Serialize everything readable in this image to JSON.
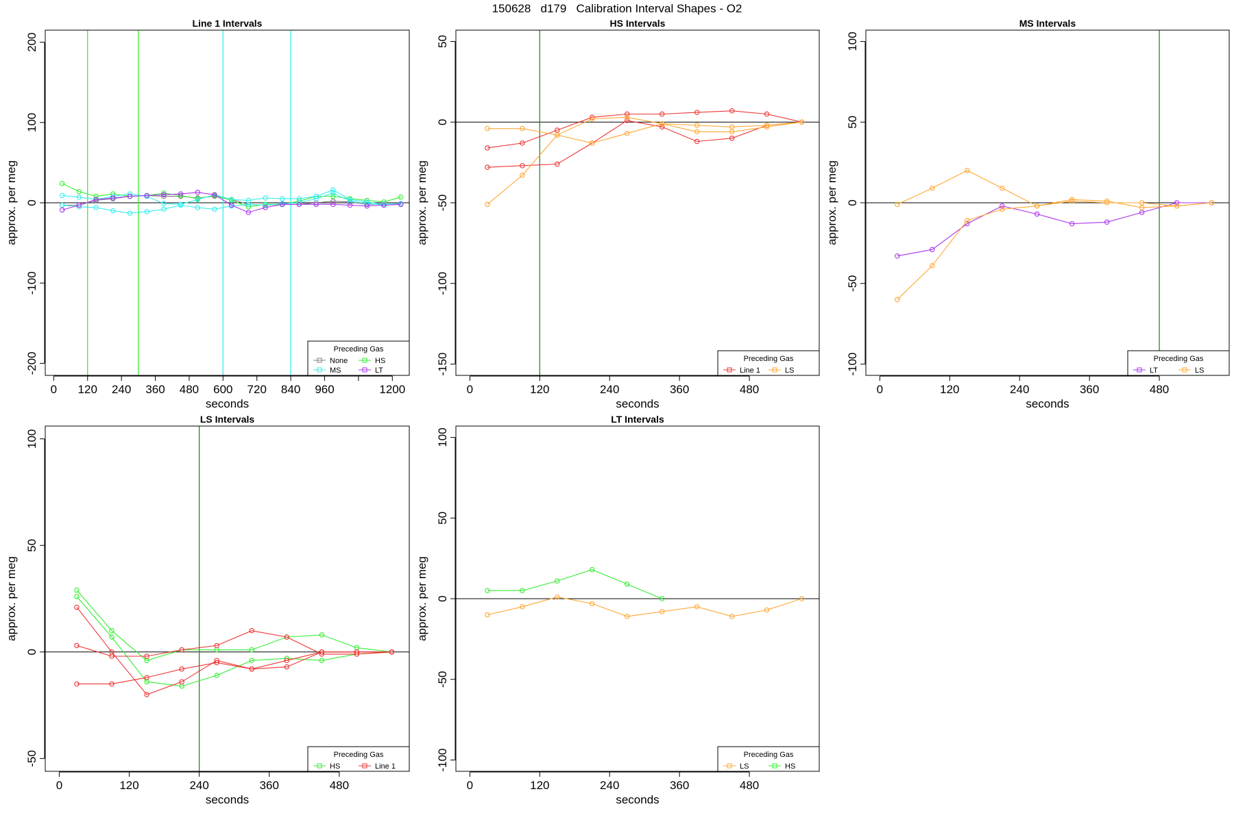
{
  "figure_title": "150628   d179   Calibration Interval Shapes - O2",
  "colors": {
    "None": "#808080",
    "HS": "#33ee33",
    "MS": "#33eeee",
    "LT": "#aa33ee",
    "Line 1": "#ee3333",
    "LS": "#ffa733",
    "vline_green": "#228b22",
    "vline_light_green": "#33ee33",
    "vline_cyan": "#33eeee",
    "zero_line": "#000000"
  },
  "chart_data": [
    {
      "type": "line",
      "title": "Line 1 Intervals",
      "xlabel": "seconds",
      "ylabel": "approx. per meg",
      "xlim": [
        -30,
        1260
      ],
      "ylim": [
        -215,
        215
      ],
      "xticks": [
        0,
        120,
        240,
        360,
        480,
        600,
        720,
        840,
        960,
        1080,
        1200
      ],
      "xtick_labels": [
        "0",
        "120",
        "240",
        "360",
        "480",
        "600",
        "720",
        "840",
        "960",
        "",
        "1200"
      ],
      "yticks": [
        -200,
        -100,
        0,
        100,
        200
      ],
      "vlines": [
        {
          "x": 120,
          "color": "vline_light_green"
        },
        {
          "x": 300,
          "color": "vline_light_green"
        },
        {
          "x": 600,
          "color": "vline_cyan"
        },
        {
          "x": 840,
          "color": "vline_cyan"
        }
      ],
      "legend": {
        "title": "Preceding Gas",
        "entries": [
          "None",
          "HS",
          "MS",
          "LT"
        ],
        "position": "bottom-right"
      },
      "series": [
        {
          "name": "None",
          "x": [
            30,
            90,
            150,
            210,
            270,
            330,
            390,
            450,
            510,
            570,
            630,
            690,
            750,
            810,
            870,
            930,
            990,
            1050,
            1110,
            1170,
            1230
          ],
          "values": [
            -3,
            -3,
            3,
            5,
            8,
            9,
            8,
            8,
            6,
            8,
            4,
            -2,
            -3,
            -2,
            -2,
            0,
            2,
            1,
            -2,
            -2,
            -2
          ]
        },
        {
          "name": "HS",
          "x": [
            30,
            90,
            150,
            210,
            270,
            330,
            390,
            450,
            510,
            570,
            630,
            690,
            750,
            810,
            870,
            930,
            990,
            1050,
            1110,
            1170,
            1230
          ],
          "values": [
            24,
            14,
            8,
            11,
            8,
            9,
            12,
            9,
            5,
            9,
            3,
            -5,
            -2,
            -2,
            2,
            8,
            8,
            5,
            3,
            1,
            7
          ]
        },
        {
          "name": "MS",
          "x": [
            30,
            90,
            150,
            210,
            270,
            330,
            390,
            450,
            510,
            570,
            630,
            690,
            750,
            810,
            870,
            930,
            990,
            1050,
            1110,
            1170,
            1230
          ],
          "values": [
            9,
            7,
            4,
            8,
            11,
            8,
            -1,
            -2,
            4,
            10,
            4,
            3,
            6,
            5,
            5,
            8,
            16,
            4,
            1,
            -2,
            -1
          ]
        },
        {
          "name": "MS",
          "x": [
            30,
            90,
            150,
            210,
            270,
            330,
            390,
            450,
            510,
            570,
            630,
            690,
            750,
            810,
            870,
            930,
            990,
            1050,
            1110,
            1170,
            1230
          ],
          "values": [
            -3,
            -5,
            -6,
            -10,
            -13,
            -11,
            -8,
            -3,
            -6,
            -8,
            -4,
            -2,
            -3,
            -1,
            0,
            5,
            12,
            2,
            -1,
            -3,
            -2
          ]
        },
        {
          "name": "LT",
          "x": [
            30,
            90,
            150,
            210,
            270,
            330,
            390,
            450,
            510,
            570,
            630,
            690,
            750,
            810,
            870,
            930,
            990,
            1050,
            1110,
            1170,
            1230
          ],
          "values": [
            -9,
            -3,
            4,
            6,
            8,
            9,
            10,
            11,
            13,
            10,
            -3,
            -12,
            -6,
            -2,
            -2,
            -2,
            -2,
            -3,
            -4,
            -3,
            -2
          ]
        }
      ]
    },
    {
      "type": "line",
      "title": "HS Intervals",
      "xlabel": "seconds",
      "ylabel": "approx. per meg",
      "xlim": [
        -24,
        600
      ],
      "ylim": [
        -157,
        57
      ],
      "xticks": [
        0,
        120,
        240,
        360,
        480
      ],
      "xtick_labels": [
        "0",
        "120",
        "240",
        "360",
        "480"
      ],
      "yticks": [
        -150,
        -100,
        -50,
        0,
        50
      ],
      "vlines": [
        {
          "x": 120,
          "color": "vline_green"
        }
      ],
      "legend": {
        "title": "Preceding Gas",
        "entries": [
          "Line 1",
          "LS"
        ],
        "position": "bottom-right"
      },
      "series": [
        {
          "name": "Line 1",
          "x": [
            30,
            90,
            150,
            210,
            270,
            330,
            390,
            450,
            510,
            570
          ],
          "values": [
            -16,
            -13,
            -5,
            3,
            5,
            5,
            6,
            7,
            5,
            0
          ]
        },
        {
          "name": "Line 1",
          "x": [
            30,
            90,
            150,
            210,
            270,
            330,
            390,
            450,
            510,
            570
          ],
          "values": [
            -28,
            -27,
            -26,
            -13,
            1,
            -3,
            -12,
            -10,
            -2,
            0
          ]
        },
        {
          "name": "LS",
          "x": [
            30,
            90,
            150,
            210,
            270,
            330,
            390,
            450,
            510,
            570
          ],
          "values": [
            -4,
            -4,
            -8,
            2,
            3,
            -1,
            -6,
            -6,
            -3,
            0
          ]
        },
        {
          "name": "LS",
          "x": [
            30,
            90,
            150,
            210,
            270,
            330,
            390,
            450,
            510,
            570
          ],
          "values": [
            -51,
            -33,
            -8,
            -13,
            -7,
            -1,
            -2,
            -3,
            -2,
            0
          ]
        }
      ]
    },
    {
      "type": "line",
      "title": "MS Intervals",
      "xlabel": "seconds",
      "ylabel": "approx. per meg",
      "xlim": [
        -24,
        600
      ],
      "ylim": [
        -107,
        107
      ],
      "xticks": [
        0,
        120,
        240,
        360,
        480
      ],
      "xtick_labels": [
        "0",
        "120",
        "240",
        "360",
        "480"
      ],
      "yticks": [
        -100,
        -50,
        0,
        50,
        100
      ],
      "vlines": [
        {
          "x": 480,
          "color": "vline_green"
        }
      ],
      "legend": {
        "title": "Preceding Gas",
        "entries": [
          "LT",
          "LS"
        ],
        "position": "bottom-right"
      },
      "series": [
        {
          "name": "LT",
          "x": [
            30,
            90,
            150,
            210,
            270,
            330,
            390,
            450,
            510,
            570
          ],
          "values": [
            -33,
            -29,
            -13,
            -2,
            -7,
            -13,
            -12,
            -6,
            0,
            0
          ]
        },
        {
          "name": "LS",
          "x": [
            30,
            90,
            150,
            210,
            270,
            330,
            390,
            450,
            510,
            570
          ],
          "values": [
            -1,
            9,
            20,
            9,
            -2,
            1,
            0,
            0,
            -2,
            0
          ]
        },
        {
          "name": "LS",
          "x": [
            30,
            90,
            150,
            210,
            270,
            330,
            390,
            450,
            510,
            570
          ],
          "values": [
            -60,
            -39,
            -11,
            -4,
            -2,
            2,
            1,
            -3,
            -2,
            0
          ]
        }
      ]
    },
    {
      "type": "line",
      "title": "LS Intervals",
      "xlabel": "seconds",
      "ylabel": "approx. per meg",
      "xlim": [
        -24,
        600
      ],
      "ylim": [
        -56,
        106
      ],
      "xticks": [
        0,
        120,
        240,
        360,
        480
      ],
      "xtick_labels": [
        "0",
        "120",
        "240",
        "360",
        "480"
      ],
      "yticks": [
        -50,
        0,
        50,
        100
      ],
      "vlines": [
        {
          "x": 240,
          "color": "vline_green"
        }
      ],
      "legend": {
        "title": "Preceding Gas",
        "entries": [
          "HS",
          "Line 1"
        ],
        "position": "bottom-right"
      },
      "series": [
        {
          "name": "HS",
          "x": [
            30,
            90,
            150,
            210,
            270,
            330,
            390,
            450,
            510,
            570
          ],
          "values": [
            29,
            10,
            -4,
            1,
            1,
            1,
            7,
            8,
            2,
            0
          ]
        },
        {
          "name": "HS",
          "x": [
            30,
            90,
            150,
            210,
            270,
            330,
            390,
            450,
            510,
            570
          ],
          "values": [
            26,
            7,
            -14,
            -16,
            -11,
            -4,
            -3,
            -4,
            -1,
            0
          ]
        },
        {
          "name": "Line 1",
          "x": [
            30,
            90,
            150,
            210,
            270,
            330,
            390,
            450,
            510,
            570
          ],
          "values": [
            3,
            -2,
            -2,
            1,
            3,
            10,
            7,
            -1,
            -1,
            0
          ]
        },
        {
          "name": "Line 1",
          "x": [
            30,
            90,
            150,
            210,
            270,
            330,
            390,
            450,
            510,
            570
          ],
          "values": [
            21,
            0,
            -20,
            -14,
            -4,
            -8,
            -7,
            0,
            0,
            0
          ]
        },
        {
          "name": "Line 1",
          "x": [
            30,
            90,
            150,
            210,
            270,
            330,
            390,
            450,
            510,
            570
          ],
          "values": [
            -15,
            -15,
            -12,
            -8,
            -5,
            -8,
            -4,
            0,
            0,
            0
          ]
        }
      ]
    },
    {
      "type": "line",
      "title": "LT Intervals",
      "xlabel": "seconds",
      "ylabel": "approx. per meg",
      "xlim": [
        -24,
        600
      ],
      "ylim": [
        -107,
        107
      ],
      "xticks": [
        0,
        120,
        240,
        360,
        480
      ],
      "xtick_labels": [
        "0",
        "120",
        "240",
        "360",
        "480"
      ],
      "yticks": [
        -100,
        -50,
        0,
        50,
        100
      ],
      "vlines": [],
      "legend": {
        "title": "Preceding Gas",
        "entries": [
          "LS",
          "HS"
        ],
        "position": "bottom-right"
      },
      "series": [
        {
          "name": "LS",
          "x": [
            30,
            90,
            150,
            210,
            270,
            330,
            390,
            450,
            510,
            570
          ],
          "values": [
            -10,
            -5,
            1,
            -3,
            -11,
            -8,
            -5,
            -11,
            -7,
            0
          ]
        },
        {
          "name": "HS",
          "x": [
            30,
            90,
            150,
            210,
            270,
            330
          ],
          "values": [
            5,
            5,
            11,
            18,
            9,
            0
          ]
        }
      ]
    }
  ]
}
